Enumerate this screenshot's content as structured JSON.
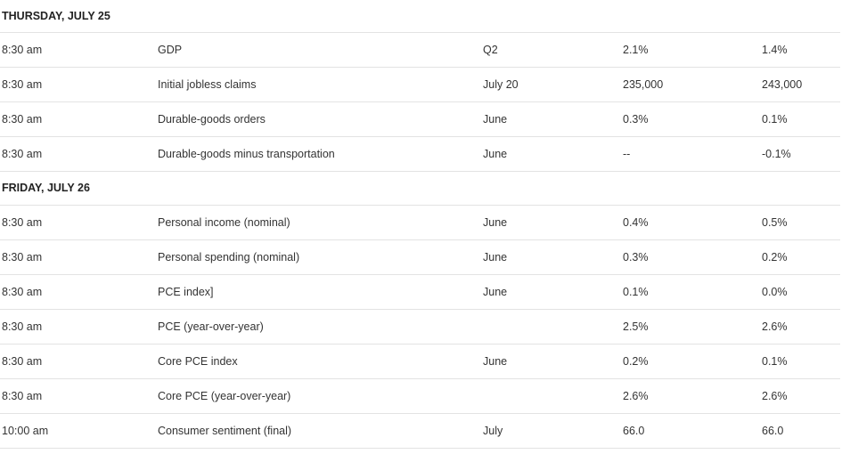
{
  "days": [
    {
      "heading": "THURSDAY, JULY 25",
      "rows": [
        {
          "time": "8:30 am",
          "report": "GDP",
          "period": "Q2",
          "forecast": "2.1%",
          "previous": "1.4%"
        },
        {
          "time": "8:30 am",
          "report": "Initial jobless claims",
          "period": "July 20",
          "forecast": "235,000",
          "previous": "243,000"
        },
        {
          "time": "8:30 am",
          "report": "Durable-goods orders",
          "period": "June",
          "forecast": "0.3%",
          "previous": "0.1%"
        },
        {
          "time": "8:30 am",
          "report": "Durable-goods minus transportation",
          "period": "June",
          "forecast": "--",
          "previous": "-0.1%"
        }
      ]
    },
    {
      "heading": "FRIDAY, JULY 26",
      "rows": [
        {
          "time": "8:30 am",
          "report": "Personal income (nominal)",
          "period": "June",
          "forecast": "0.4%",
          "previous": "0.5%"
        },
        {
          "time": "8:30 am",
          "report": "Personal spending (nominal)",
          "period": "June",
          "forecast": "0.3%",
          "previous": "0.2%"
        },
        {
          "time": "8:30 am",
          "report": "PCE index]",
          "period": "June",
          "forecast": "0.1%",
          "previous": "0.0%"
        },
        {
          "time": "8:30 am",
          "report": "PCE (year-over-year)",
          "period": "",
          "forecast": "2.5%",
          "previous": "2.6%"
        },
        {
          "time": "8:30 am",
          "report": "Core PCE index",
          "period": "June",
          "forecast": "0.2%",
          "previous": "0.1%"
        },
        {
          "time": "8:30 am",
          "report": "Core PCE (year-over-year)",
          "period": "",
          "forecast": "2.6%",
          "previous": "2.6%"
        },
        {
          "time": "10:00 am",
          "report": "Consumer sentiment (final)",
          "period": "July",
          "forecast": "66.0",
          "previous": "66.0"
        }
      ]
    }
  ]
}
